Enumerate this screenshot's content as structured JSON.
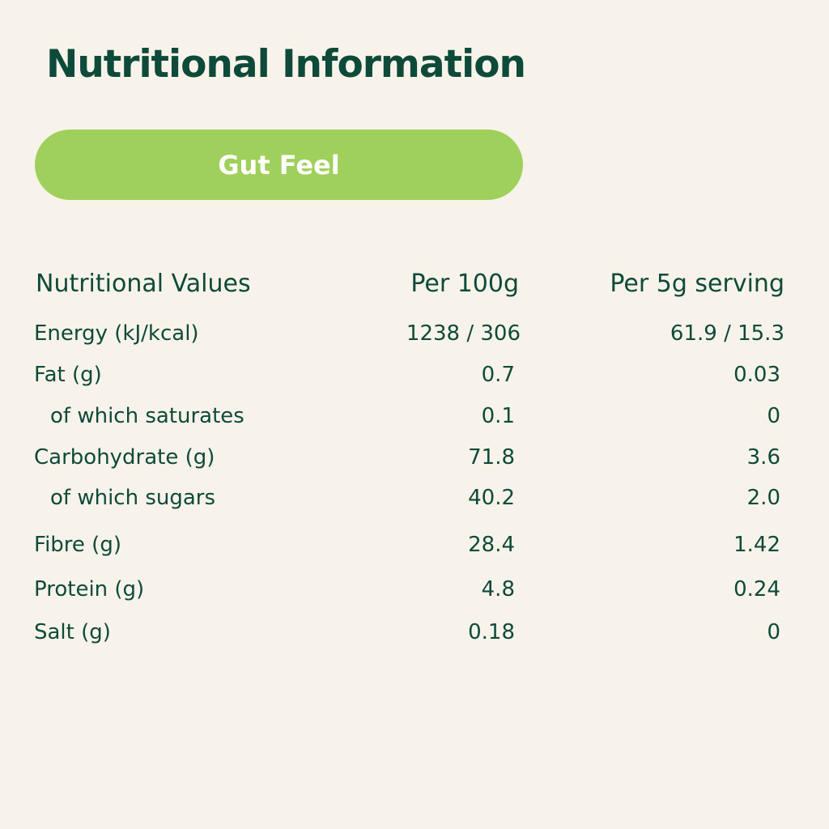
{
  "header": {
    "title": "Nutritional Information",
    "product": "Gut Feel"
  },
  "table": {
    "columns": [
      "Nutritional Values",
      "Per 100g",
      "Per 5g serving"
    ],
    "rows": [
      [
        "Energy (kJ/kcal)",
        "1238 / 306",
        "61.9 / 15.3"
      ],
      [
        "Fat (g)",
        "0.7",
        "0.03"
      ],
      [
        "of which saturates",
        "0.1",
        "0"
      ],
      [
        "Carbohydrate (g)",
        "71.8",
        "3.6"
      ],
      [
        "of which sugars",
        "40.2",
        "2.0"
      ],
      [
        "Fibre (g)",
        "28.4",
        "1.42"
      ],
      [
        "Protein (g)",
        "4.8",
        "0.24"
      ],
      [
        "Salt (g)",
        "0.18",
        "0"
      ]
    ]
  }
}
